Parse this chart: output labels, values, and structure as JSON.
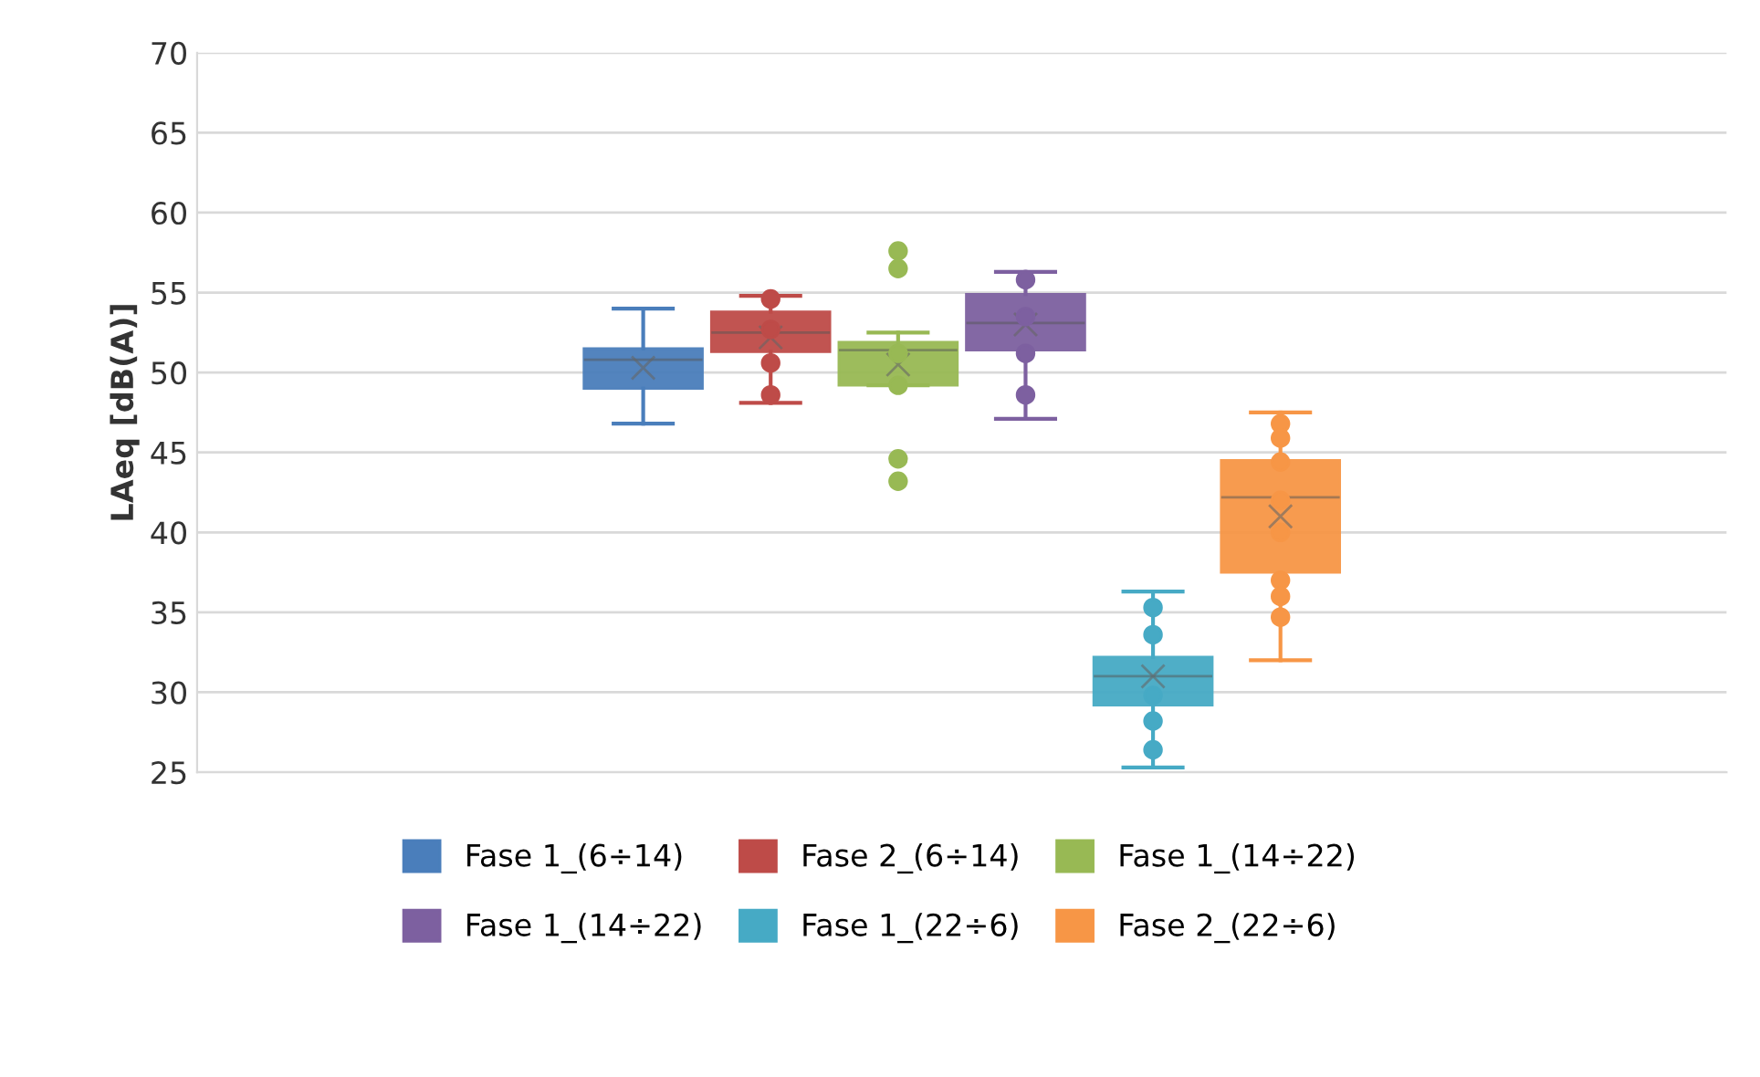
{
  "chart_data": {
    "type": "box",
    "ylabel": "LAeq [dB(A)]",
    "categories": [
      null
    ],
    "ylim": [
      25,
      70
    ],
    "yticks": [
      25,
      30,
      35,
      40,
      45,
      50,
      55,
      60,
      65,
      70
    ],
    "grid": "y",
    "legend": "bottom",
    "marker": "circle",
    "series": [
      {
        "name": "Fase 1_(6÷14)",
        "color": "#4a7ebb",
        "boxes": [
          {
            "low": 46.8,
            "q1": 49.0,
            "median": 50.8,
            "q3": 51.5,
            "high": 54.0,
            "mean": 50.3
          }
        ]
      },
      {
        "name": "Fase 2_(6÷14)",
        "color": "#be4b48",
        "boxes": [
          {
            "low": 48.1,
            "q1": 51.3,
            "median": 52.5,
            "q3": 53.8,
            "high": 54.8,
            "mean": 52.2,
            "outliers": [
              54.6,
              52.7,
              50.6,
              48.6
            ]
          }
        ]
      },
      {
        "name": "Fase 1_(14÷22)",
        "color": "#98b954",
        "boxes": [
          {
            "low": 49.2,
            "q1": 49.2,
            "median": 51.4,
            "q3": 51.9,
            "high": 52.5,
            "mean": 50.5,
            "outliers": [
              57.6,
              56.5,
              51.2,
              49.2,
              44.6,
              43.2
            ]
          }
        ]
      },
      {
        "name": "Fase 1_(14÷22)",
        "color": "#7d60a0",
        "boxes": [
          {
            "low": 47.1,
            "q1": 51.4,
            "median": 53.1,
            "q3": 54.9,
            "high": 56.3,
            "mean": 53.0,
            "outliers": [
              55.8,
              53.5,
              51.2,
              48.6
            ]
          }
        ]
      },
      {
        "name": "Fase 1_(22÷6)",
        "color": "#46aac5",
        "boxes": [
          {
            "low": 25.3,
            "q1": 29.2,
            "median": 31.0,
            "q3": 32.2,
            "high": 36.3,
            "mean": 31.0,
            "outliers": [
              35.3,
              33.6,
              29.8,
              28.2,
              26.4
            ]
          }
        ]
      },
      {
        "name": "Fase 2_(22÷6)",
        "color": "#f79646",
        "boxes": [
          {
            "low": 32.0,
            "q1": 37.5,
            "median": 42.2,
            "q3": 44.5,
            "high": 47.5,
            "mean": 41.0,
            "outliers": [
              46.8,
              45.9,
              44.4,
              42.0,
              40.0,
              37.0,
              36.0,
              34.7
            ]
          }
        ]
      }
    ]
  }
}
